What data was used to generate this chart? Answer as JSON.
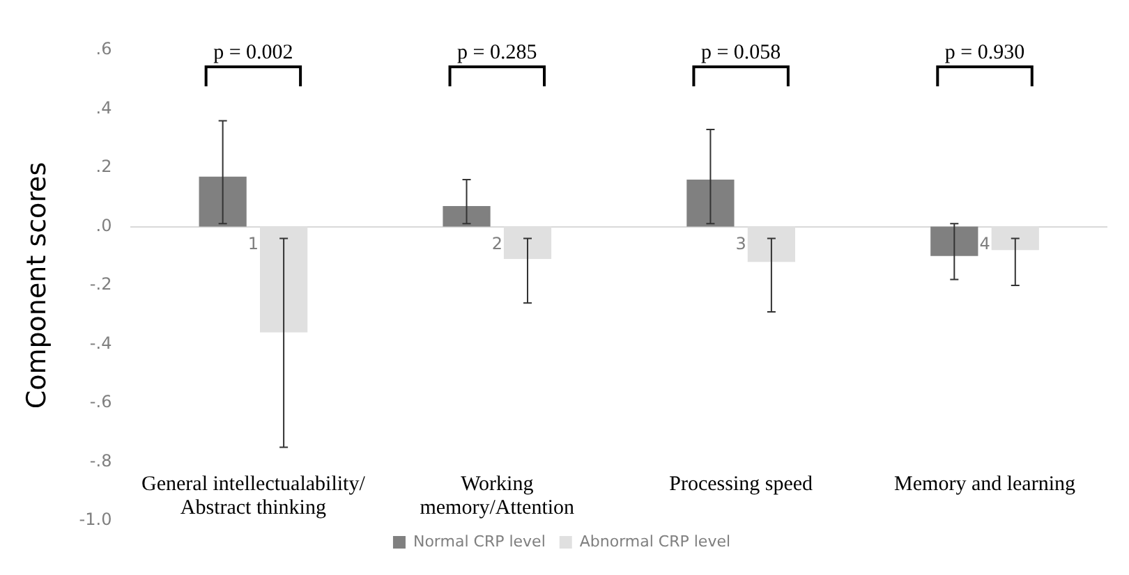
{
  "chart_data": {
    "type": "bar",
    "ylabel": "Component scores",
    "categories": [
      "1",
      "2",
      "3",
      "4"
    ],
    "series": [
      {
        "name": "Normal CRP level",
        "color": "#808080",
        "values": [
          0.17,
          0.07,
          0.16,
          -0.1
        ],
        "errors": [
          [
            0.01,
            0.36
          ],
          [
            0.01,
            0.16
          ],
          [
            0.01,
            0.33
          ],
          [
            -0.18,
            0.01
          ]
        ]
      },
      {
        "name": "Abnormal CRP level",
        "color": "#e0e0e0",
        "values": [
          -0.36,
          -0.11,
          -0.12,
          -0.08
        ],
        "errors": [
          [
            -0.75,
            -0.04
          ],
          [
            -0.26,
            -0.04
          ],
          [
            -0.29,
            -0.04
          ],
          [
            -0.2,
            -0.04
          ]
        ]
      }
    ],
    "ylim": [
      -1.0,
      0.6
    ],
    "yticks": [
      {
        "value": -1.0,
        "label": "-1.0"
      },
      {
        "value": -0.8,
        "label": "-.8"
      },
      {
        "value": -0.6,
        "label": "-.6"
      },
      {
        "value": -0.4,
        "label": "-.4"
      },
      {
        "value": -0.2,
        "label": "-.2"
      },
      {
        "value": 0,
        "label": ".0"
      },
      {
        "value": 0.2,
        "label": ".2"
      },
      {
        "value": 0.4,
        "label": ".4"
      },
      {
        "value": 0.6,
        "label": ".6"
      }
    ],
    "grid": false,
    "legend": "bottom",
    "annotations": [
      "p = 0.002",
      "p = 0.285",
      "p = 0.058",
      "p = 0.930",
      "General intellectualability/\nAbstract thinking",
      "Working\nmemory/Attention",
      "Processing speed",
      "Memory and learning"
    ]
  }
}
